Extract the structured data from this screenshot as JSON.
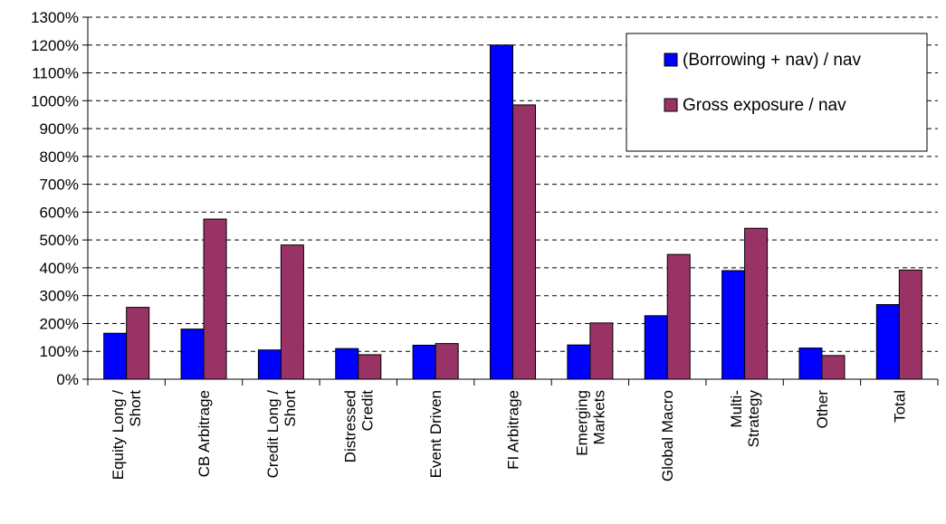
{
  "chart_data": {
    "type": "bar",
    "title": "",
    "xlabel": "",
    "ylabel": "",
    "ylim": [
      0,
      1300
    ],
    "ytick_step": 100,
    "ytick_labels": [
      "0%",
      "100%",
      "200%",
      "300%",
      "400%",
      "500%",
      "600%",
      "700%",
      "800%",
      "900%",
      "1000%",
      "1100%",
      "1200%",
      "1300%"
    ],
    "grid": "dashed horizontal",
    "legend_position": "top-right",
    "categories": [
      [
        "Equity Long /",
        "Short"
      ],
      [
        "CB Arbitrage"
      ],
      [
        "Credit Long /",
        "Short"
      ],
      [
        "Distressed",
        "Credit"
      ],
      [
        "Event Driven"
      ],
      [
        "FI Arbitrage"
      ],
      [
        "Emerging",
        "Markets"
      ],
      [
        "Global Macro"
      ],
      [
        "Multi-",
        "Strategy"
      ],
      [
        "Other"
      ],
      [
        "Total"
      ]
    ],
    "series": [
      {
        "name": "(Borrowing + nav) / nav",
        "color": "#0000FF",
        "values": [
          165,
          180,
          105,
          110,
          122,
          1200,
          123,
          228,
          390,
          112,
          268
        ]
      },
      {
        "name": "Gross exposure / nav",
        "color": "#993366",
        "values": [
          258,
          575,
          482,
          88,
          128,
          985,
          202,
          448,
          542,
          85,
          392
        ]
      }
    ]
  }
}
